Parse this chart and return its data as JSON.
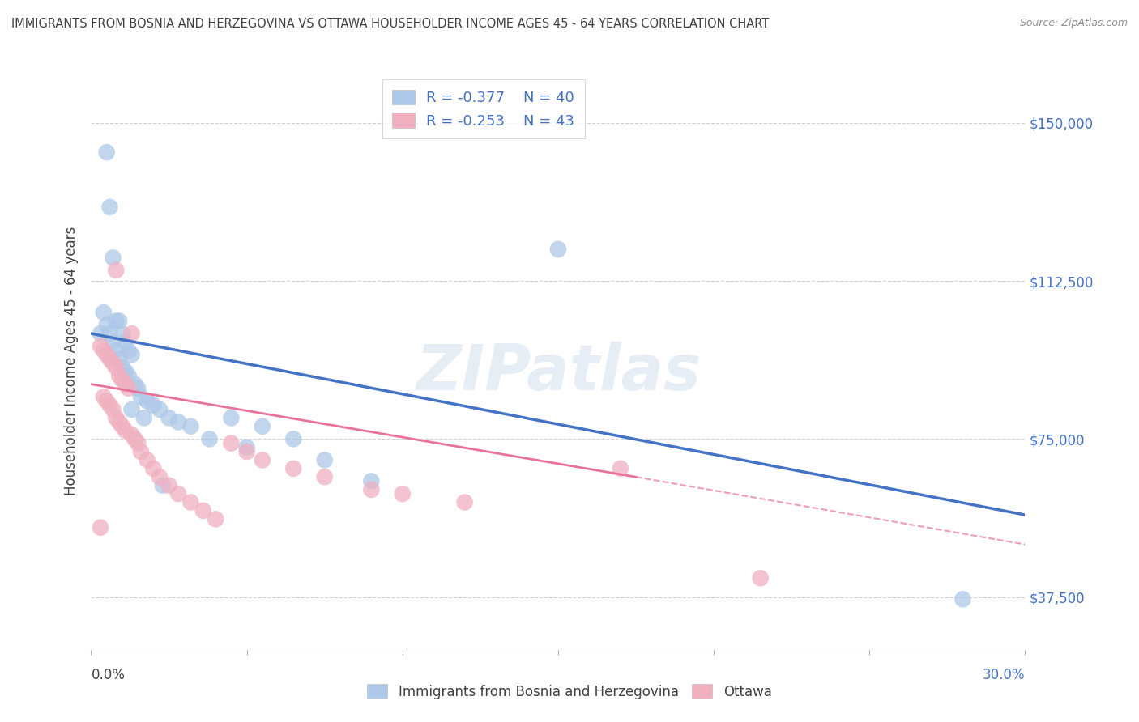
{
  "title": "IMMIGRANTS FROM BOSNIA AND HERZEGOVINA VS OTTAWA HOUSEHOLDER INCOME AGES 45 - 64 YEARS CORRELATION CHART",
  "source": "Source: ZipAtlas.com",
  "ylabel": "Householder Income Ages 45 - 64 years",
  "xlim": [
    0.0,
    0.3
  ],
  "ylim": [
    25000,
    162000
  ],
  "yticks": [
    37500,
    75000,
    112500,
    150000
  ],
  "ytick_labels": [
    "$37,500",
    "$75,000",
    "$112,500",
    "$150,000"
  ],
  "xticks": [
    0.0,
    0.05,
    0.1,
    0.15,
    0.2,
    0.25,
    0.3
  ],
  "background_color": "#ffffff",
  "watermark": "ZIPatlas",
  "legend_entries": [
    {
      "color": "#adc8e8",
      "R": "-0.377",
      "N": "40"
    },
    {
      "color": "#f0b0c0",
      "R": "-0.253",
      "N": "43"
    }
  ],
  "blue_scatter_x": [
    0.003,
    0.005,
    0.006,
    0.007,
    0.008,
    0.009,
    0.01,
    0.011,
    0.012,
    0.013,
    0.004,
    0.005,
    0.006,
    0.007,
    0.008,
    0.009,
    0.01,
    0.011,
    0.012,
    0.014,
    0.015,
    0.016,
    0.018,
    0.02,
    0.022,
    0.025,
    0.028,
    0.032,
    0.038,
    0.05,
    0.055,
    0.065,
    0.075,
    0.09,
    0.15,
    0.28,
    0.013,
    0.017,
    0.023,
    0.045
  ],
  "blue_scatter_y": [
    100000,
    143000,
    130000,
    118000,
    103000,
    103000,
    100000,
    98000,
    96000,
    95000,
    105000,
    102000,
    100000,
    98000,
    96000,
    94000,
    92000,
    91000,
    90000,
    88000,
    87000,
    85000,
    84000,
    83000,
    82000,
    80000,
    79000,
    78000,
    75000,
    73000,
    78000,
    75000,
    70000,
    65000,
    120000,
    37000,
    82000,
    80000,
    64000,
    80000
  ],
  "pink_scatter_x": [
    0.003,
    0.004,
    0.005,
    0.006,
    0.007,
    0.008,
    0.009,
    0.01,
    0.011,
    0.012,
    0.004,
    0.005,
    0.006,
    0.007,
    0.008,
    0.009,
    0.01,
    0.011,
    0.013,
    0.014,
    0.015,
    0.016,
    0.018,
    0.02,
    0.022,
    0.025,
    0.028,
    0.032,
    0.036,
    0.04,
    0.045,
    0.05,
    0.055,
    0.065,
    0.075,
    0.09,
    0.1,
    0.12,
    0.17,
    0.003,
    0.008,
    0.013,
    0.215
  ],
  "pink_scatter_y": [
    97000,
    96000,
    95000,
    94000,
    93000,
    92000,
    90000,
    89000,
    88000,
    87000,
    85000,
    84000,
    83000,
    82000,
    80000,
    79000,
    78000,
    77000,
    76000,
    75000,
    74000,
    72000,
    70000,
    68000,
    66000,
    64000,
    62000,
    60000,
    58000,
    56000,
    74000,
    72000,
    70000,
    68000,
    66000,
    63000,
    62000,
    60000,
    68000,
    54000,
    115000,
    100000,
    42000
  ],
  "blue_line_x": [
    0.0,
    0.3
  ],
  "blue_line_y": [
    100000,
    57000
  ],
  "pink_solid_line_x": [
    0.0,
    0.175
  ],
  "pink_solid_line_y": [
    88000,
    66000
  ],
  "pink_dash_line_x": [
    0.175,
    0.3
  ],
  "pink_dash_line_y": [
    66000,
    50000
  ],
  "blue_color": "#4472c4",
  "pink_color": "#e8729a",
  "blue_scatter_color": "#adc8e8",
  "pink_scatter_color": "#f0b0c0",
  "title_color": "#404040",
  "source_color": "#909090",
  "tick_label_color_right": "#4472c4",
  "tick_label_color_bottom_left": "#404040",
  "tick_label_color_bottom_right": "#4472c4",
  "grid_color": "#d0d0d0",
  "legend_text_color": "#4472c4"
}
